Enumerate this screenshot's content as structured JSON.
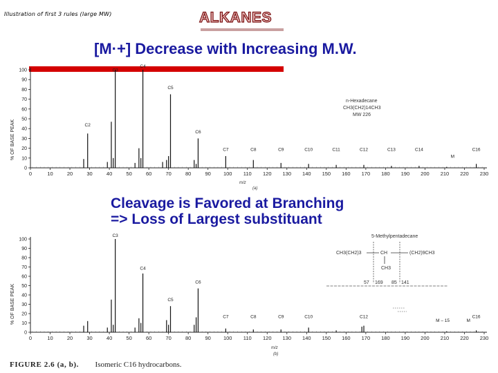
{
  "top_note": "Illustration of first 3 rules (large MW)",
  "title": "ALKANES",
  "heading1": "[M·+] Decrease with Increasing M.W.",
  "heading2_line1": "Cleavage is Favored at Branching",
  "heading2_line2": "=> Loss of Largest substituant",
  "caption_fig": "FIGURE 2.6 (a, b).",
  "caption_text": "Isomeric C16 hydrocarbons.",
  "chart_data": [
    {
      "type": "bar",
      "panel": "(a)",
      "ylabel": "% OF BASE PEAK",
      "xlabel": "m/z",
      "xlim": [
        0,
        230
      ],
      "ylim": [
        0,
        100
      ],
      "xticks": [
        0,
        10,
        20,
        30,
        40,
        50,
        60,
        70,
        80,
        90,
        100,
        110,
        120,
        130,
        140,
        150,
        160,
        170,
        180,
        190,
        200,
        210,
        220,
        230
      ],
      "yticks": [
        0,
        10,
        20,
        30,
        40,
        50,
        60,
        70,
        80,
        90,
        100
      ],
      "compound": {
        "name": "n-Hexadecane",
        "formula": "CH3(CH2)14CH3",
        "mw": "MW 226"
      },
      "peaks": [
        {
          "x": 27,
          "y": 9
        },
        {
          "x": 29,
          "y": 35
        },
        {
          "x": 39,
          "y": 6
        },
        {
          "x": 41,
          "y": 47
        },
        {
          "x": 42,
          "y": 10
        },
        {
          "x": 43,
          "y": 100
        },
        {
          "x": 53,
          "y": 5
        },
        {
          "x": 55,
          "y": 20
        },
        {
          "x": 56,
          "y": 10
        },
        {
          "x": 57,
          "y": 100
        },
        {
          "x": 67,
          "y": 6
        },
        {
          "x": 69,
          "y": 8
        },
        {
          "x": 70,
          "y": 12
        },
        {
          "x": 71,
          "y": 75
        },
        {
          "x": 83,
          "y": 8
        },
        {
          "x": 84,
          "y": 4
        },
        {
          "x": 85,
          "y": 30
        },
        {
          "x": 99,
          "y": 12
        },
        {
          "x": 113,
          "y": 8
        },
        {
          "x": 127,
          "y": 5
        },
        {
          "x": 141,
          "y": 4
        },
        {
          "x": 155,
          "y": 3
        },
        {
          "x": 169,
          "y": 3
        },
        {
          "x": 183,
          "y": 2
        },
        {
          "x": 197,
          "y": 2
        },
        {
          "x": 211,
          "y": 1
        },
        {
          "x": 226,
          "y": 4
        }
      ],
      "labels": [
        {
          "text": "C2",
          "x": 29,
          "y": 40
        },
        {
          "text": "C3",
          "x": 43,
          "y": 96
        },
        {
          "text": "C4",
          "x": 57,
          "y": 100
        },
        {
          "text": "C5",
          "x": 71,
          "y": 78
        },
        {
          "text": "C6",
          "x": 85,
          "y": 33
        },
        {
          "text": "C7",
          "x": 99,
          "y": 15
        },
        {
          "text": "C8",
          "x": 113,
          "y": 15
        },
        {
          "text": "C9",
          "x": 127,
          "y": 15
        },
        {
          "text": "C10",
          "x": 141,
          "y": 15
        },
        {
          "text": "C11",
          "x": 155,
          "y": 15
        },
        {
          "text": "C12",
          "x": 169,
          "y": 15
        },
        {
          "text": "C13",
          "x": 183,
          "y": 15
        },
        {
          "text": "C14",
          "x": 197,
          "y": 15
        },
        {
          "text": "C16",
          "x": 226,
          "y": 15
        },
        {
          "text": "M",
          "x": 214,
          "y": 8
        }
      ]
    },
    {
      "type": "bar",
      "panel": "(b)",
      "ylabel": "% OF BASE PEAK",
      "xlabel": "m/z",
      "xlim": [
        0,
        230
      ],
      "ylim": [
        0,
        100
      ],
      "xticks": [
        0,
        10,
        20,
        30,
        40,
        50,
        60,
        70,
        80,
        90,
        100,
        110,
        120,
        130,
        140,
        150,
        160,
        170,
        180,
        190,
        200,
        210,
        220,
        230
      ],
      "yticks": [
        0,
        10,
        20,
        30,
        40,
        50,
        60,
        70,
        80,
        90,
        100
      ],
      "compound": {
        "name": "5-Methylpentadecane",
        "formula_left": "CH3(CH2)3",
        "formula_center": "CH",
        "formula_branch": "CH3",
        "formula_right": "(CH2)9CH3",
        "frag1": "57",
        "frag1b": "169",
        "frag2": "85",
        "frag2b": "141"
      },
      "peaks": [
        {
          "x": 27,
          "y": 7
        },
        {
          "x": 29,
          "y": 12
        },
        {
          "x": 39,
          "y": 5
        },
        {
          "x": 41,
          "y": 35
        },
        {
          "x": 42,
          "y": 8
        },
        {
          "x": 43,
          "y": 100
        },
        {
          "x": 53,
          "y": 5
        },
        {
          "x": 55,
          "y": 15
        },
        {
          "x": 56,
          "y": 10
        },
        {
          "x": 57,
          "y": 63
        },
        {
          "x": 69,
          "y": 13
        },
        {
          "x": 70,
          "y": 8
        },
        {
          "x": 71,
          "y": 28
        },
        {
          "x": 83,
          "y": 8
        },
        {
          "x": 84,
          "y": 16
        },
        {
          "x": 85,
          "y": 47
        },
        {
          "x": 99,
          "y": 4
        },
        {
          "x": 113,
          "y": 3
        },
        {
          "x": 127,
          "y": 3
        },
        {
          "x": 141,
          "y": 5
        },
        {
          "x": 155,
          "y": 2
        },
        {
          "x": 168,
          "y": 6
        },
        {
          "x": 169,
          "y": 7
        },
        {
          "x": 211,
          "y": 1
        },
        {
          "x": 226,
          "y": 2
        }
      ],
      "labels": [
        {
          "text": "C3",
          "x": 43,
          "y": 100
        },
        {
          "text": "C4",
          "x": 57,
          "y": 65
        },
        {
          "text": "C6",
          "x": 85,
          "y": 50
        },
        {
          "text": "C5",
          "x": 71,
          "y": 31
        },
        {
          "text": "C7",
          "x": 99,
          "y": 13
        },
        {
          "text": "C8",
          "x": 113,
          "y": 13
        },
        {
          "text": "C9",
          "x": 127,
          "y": 13
        },
        {
          "text": "C10",
          "x": 141,
          "y": 13
        },
        {
          "text": "C12",
          "x": 169,
          "y": 13
        },
        {
          "text": "C16",
          "x": 226,
          "y": 13
        },
        {
          "text": "M – 15",
          "x": 209,
          "y": 9
        },
        {
          "text": "M",
          "x": 222,
          "y": 9
        }
      ]
    }
  ]
}
